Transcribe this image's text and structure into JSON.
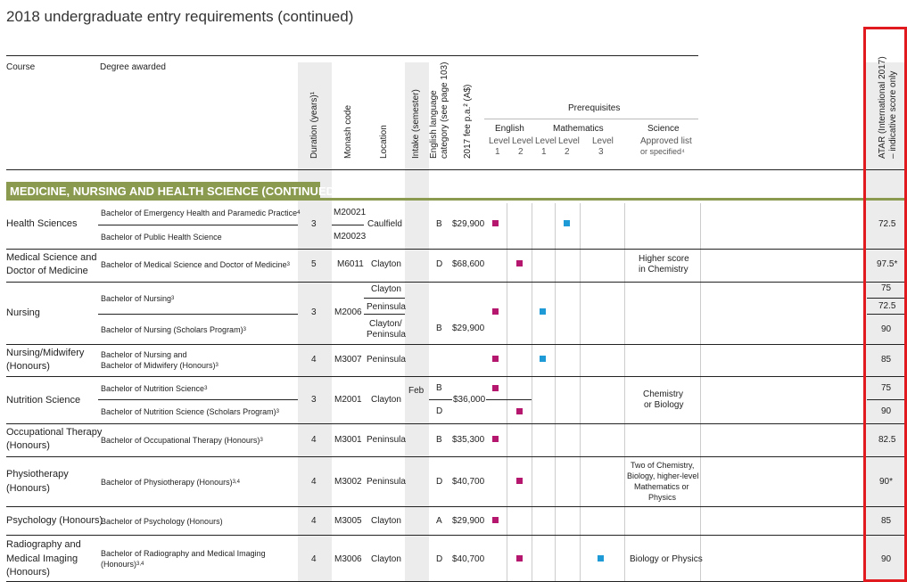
{
  "page": {
    "title": "2018 undergraduate entry requirements (continued)"
  },
  "headers": {
    "course": "Course",
    "degree": "Degree awarded",
    "duration": "Duration (years)¹",
    "code": "Monash code",
    "location": "Location",
    "intake": "Intake (semester)",
    "english_category_1": "English language",
    "english_category_2": "category (see page 103)",
    "fee": "2017 fee p.a.² (A$)",
    "prerequisites": "Prerequisites",
    "english": "English",
    "mathematics": "Mathematics",
    "science": "Science",
    "level": "Level",
    "lvl_1": "1",
    "lvl_2": "2",
    "lvl_3": "3",
    "science_sub_1": "Approved list",
    "science_sub_2": "or specified⁴",
    "atar_1": "ATAR (International 2017)",
    "atar_2": "– indicative score only"
  },
  "section": {
    "title": "MEDICINE, NURSING AND HEALTH SCIENCE (CONTINUED)"
  },
  "intake_value": "Feb",
  "colors": {
    "magenta": "#b5166e",
    "cyan": "#1e9bd7",
    "olive": "#8a9a4e",
    "red": "#e01a1f"
  },
  "rows": [
    {
      "course": "Health Sciences",
      "deg1": "Bachelor of Emergency Health and Paramedic Practice",
      "deg1_sup": "4",
      "deg2": "Bachelor of Public Health Science",
      "duration": "3",
      "code1": "M20021",
      "code2": "M20023",
      "location": "Caulfield",
      "cat": "B",
      "fee": "$29,900",
      "atar": "72.5"
    },
    {
      "course_1": "Medical Science and",
      "course_2": "Doctor of Medicine",
      "deg": "Bachelor of Medical Science and Doctor of Medicine",
      "deg_sup": "3",
      "duration": "5",
      "code": "M6011",
      "location": "Clayton",
      "cat": "D",
      "fee": "$68,600",
      "science_1": "Higher score",
      "science_2": "in Chemistry",
      "atar": "97.5*"
    },
    {
      "course": "Nursing",
      "deg1": "Bachelor of Nursing",
      "deg1_sup": "3",
      "deg2": "Bachelor of Nursing (Scholars Program)",
      "deg2_sup": "3",
      "duration": "3",
      "code": "M2006",
      "loc1": "Clayton",
      "loc2": "Peninsula",
      "loc3_1": "Clayton/",
      "loc3_2": "Peninsula",
      "cat": "B",
      "fee": "$29,900",
      "atar1": "75",
      "atar2": "72.5",
      "atar3": "90"
    },
    {
      "course_1": "Nursing/Midwifery",
      "course_2": "(Honours)",
      "deg_1": "Bachelor of Nursing and",
      "deg_2": "Bachelor of Midwifery (Honours)",
      "deg_sup": "3",
      "duration": "4",
      "code": "M3007",
      "location": "Peninsula",
      "atar": "85"
    },
    {
      "course": "Nutrition Science",
      "deg1": "Bachelor of Nutrition Science",
      "deg1_sup": "3",
      "deg2": "Bachelor of Nutrition Science (Scholars Program)",
      "deg2_sup": "3",
      "duration": "3",
      "code": "M2001",
      "location": "Clayton",
      "cat1": "B",
      "cat2": "D",
      "fee": "$36,000",
      "science_1": "Chemistry",
      "science_2": "or Biology",
      "atar1": "75",
      "atar2": "90"
    },
    {
      "course_1": "Occupational Therapy",
      "course_2": "(Honours)",
      "deg": "Bachelor of Occupational Therapy (Honours)",
      "deg_sup": "3",
      "duration": "4",
      "code": "M3001",
      "location": "Peninsula",
      "cat": "B",
      "fee": "$35,300",
      "atar": "82.5"
    },
    {
      "course_1": "Physiotherapy",
      "course_2": "(Honours)",
      "deg": "Bachelor of Physiotherapy (Honours)",
      "deg_sup": "3,4",
      "duration": "4",
      "code": "M3002",
      "location": "Peninsula",
      "cat": "D",
      "fee": "$40,700",
      "science_1": "Two of Chemistry,",
      "science_2": "Biology, higher-level",
      "science_3": "Mathematics or",
      "science_4": "Physics",
      "atar": "90*"
    },
    {
      "course": "Psychology (Honours)",
      "deg": "Bachelor of Psychology (Honours)",
      "duration": "4",
      "code": "M3005",
      "location": "Clayton",
      "cat": "A",
      "fee": "$29,900",
      "atar": "85"
    },
    {
      "course_1": "Radiography and",
      "course_2": "Medical Imaging",
      "course_3": "(Honours)",
      "deg_1": "Bachelor of Radiography and Medical Imaging",
      "deg_2": "(Honours)",
      "deg_sup": "3,4",
      "duration": "4",
      "code": "M3006",
      "location": "Clayton",
      "cat": "D",
      "fee": "$40,700",
      "science": "Biology or Physics",
      "atar": "90"
    }
  ]
}
